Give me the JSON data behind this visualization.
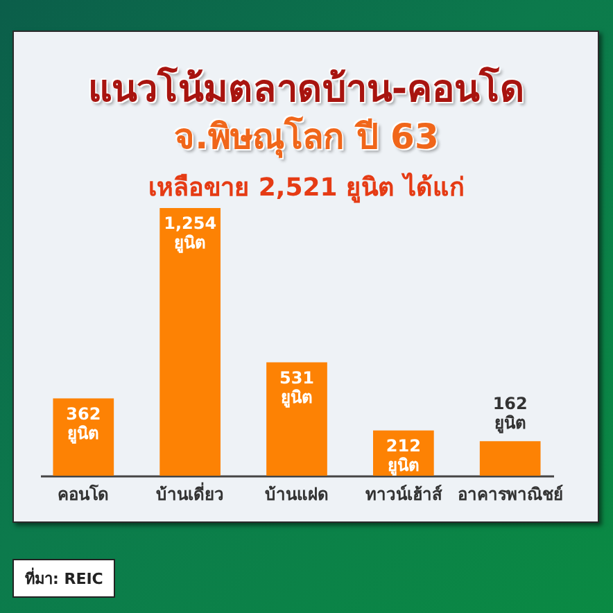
{
  "chart_data": {
    "type": "bar",
    "title": "แนวโน้มตลาดบ้าน-คอนโด\nจ.พิษณุโลก ปี 63",
    "subtitle": "เหลือขาย 2,521 ยูนิต ได้แก่",
    "categories": [
      "คอนโด",
      "บ้านเดี่ยว",
      "บ้านแฝด",
      "ทาวน์เฮ้าส์",
      "อาคารพาณิชย์"
    ],
    "values": [
      362,
      1254,
      531,
      212,
      162
    ],
    "color": "#fd8204",
    "value_labels": [
      "362\nยูนิต",
      "1,254\nยูนิต",
      "531\nยูนิต",
      "212\nยูนิต",
      "162\nยูนิต"
    ],
    "tick_labels": "x",
    "annotations": [
      "ที่มา: REIC"
    ]
  }
}
